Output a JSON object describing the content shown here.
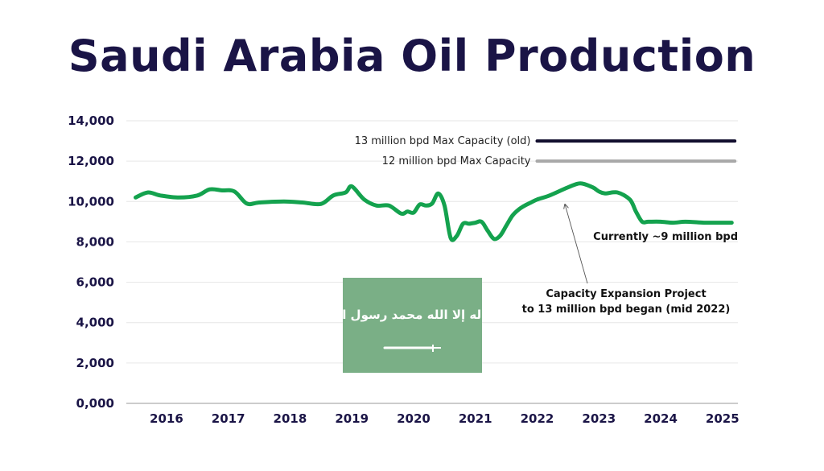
{
  "chart_data": {
    "type": "line",
    "title": "Saudi Arabia Oil Production",
    "xlabel": "",
    "ylabel": "",
    "ylim": [
      0,
      14000
    ],
    "xlim": [
      2015.35,
      2025.25
    ],
    "y_ticks": [
      {
        "value": 0,
        "label": "0,000"
      },
      {
        "value": 2000,
        "label": "2,000"
      },
      {
        "value": 4000,
        "label": "4,000"
      },
      {
        "value": 6000,
        "label": "6,000"
      },
      {
        "value": 8000,
        "label": "8,000"
      },
      {
        "value": 10000,
        "label": "10,000"
      },
      {
        "value": 12000,
        "label": "12,000"
      },
      {
        "value": 14000,
        "label": "14,000"
      }
    ],
    "x_ticks": [
      {
        "value": 2016,
        "label": "2016"
      },
      {
        "value": 2017,
        "label": "2017"
      },
      {
        "value": 2018,
        "label": "2018"
      },
      {
        "value": 2019,
        "label": "2019"
      },
      {
        "value": 2020,
        "label": "2020"
      },
      {
        "value": 2021,
        "label": "2021"
      },
      {
        "value": 2022,
        "label": "2022"
      },
      {
        "value": 2023,
        "label": "2023"
      },
      {
        "value": 2024,
        "label": "2024"
      },
      {
        "value": 2025,
        "label": "2025"
      }
    ],
    "grid": true,
    "series": [
      {
        "name": "",
        "color": "#14a24e",
        "x": [
          2015.5,
          2015.7,
          2015.9,
          2016.2,
          2016.5,
          2016.7,
          2016.9,
          2017.1,
          2017.3,
          2017.5,
          2017.9,
          2018.2,
          2018.5,
          2018.7,
          2018.9,
          2019.0,
          2019.2,
          2019.4,
          2019.6,
          2019.8,
          2019.9,
          2020.0,
          2020.1,
          2020.2,
          2020.3,
          2020.4,
          2020.5,
          2020.6,
          2020.7,
          2020.8,
          2020.9,
          2021.0,
          2021.1,
          2021.2,
          2021.3,
          2021.4,
          2021.5,
          2021.6,
          2021.7,
          2021.8,
          2021.9,
          2022.0,
          2022.2,
          2022.5,
          2022.7,
          2022.9,
          2023.0,
          2023.1,
          2023.3,
          2023.5,
          2023.6,
          2023.7,
          2023.8,
          2024.0,
          2024.2,
          2024.4,
          2024.7,
          2024.9,
          2025.15
        ],
        "values": [
          10200,
          10450,
          10300,
          10200,
          10300,
          10600,
          10550,
          10500,
          9900,
          9950,
          10000,
          9950,
          9880,
          10300,
          10450,
          10750,
          10100,
          9800,
          9800,
          9400,
          9500,
          9450,
          9850,
          9800,
          9900,
          10400,
          9800,
          8200,
          8300,
          8900,
          8900,
          8950,
          9000,
          8550,
          8150,
          8300,
          8800,
          9300,
          9600,
          9800,
          9950,
          10100,
          10300,
          10700,
          10900,
          10700,
          10500,
          10400,
          10450,
          10100,
          9500,
          9000,
          9000,
          9000,
          8950,
          9000,
          8950,
          8950,
          8950
        ]
      }
    ],
    "reference_lines": [
      {
        "label": "13 million bpd Max Capacity (old)",
        "value": 13000,
        "x_start": 2022.0,
        "x_end": 2025.2,
        "color": "#120e2e"
      },
      {
        "label": "12 million bpd Max Capacity",
        "value": 12000,
        "x_start": 2022.0,
        "x_end": 2025.2,
        "color": "#a8a8a8"
      }
    ],
    "annotations": [
      {
        "name": "current",
        "text": "Currently ~9 million bpd"
      },
      {
        "name": "expansion",
        "lines": [
          "Capacity Expansion Project",
          "to 13 million bpd began (mid 2022)"
        ],
        "arrow_to": [
          2022.45,
          10100
        ]
      }
    ]
  },
  "flag": {
    "background": "#7aaf86",
    "foreground": "#ffffff",
    "text": "لا إله إلا الله محمد رسول الله"
  }
}
